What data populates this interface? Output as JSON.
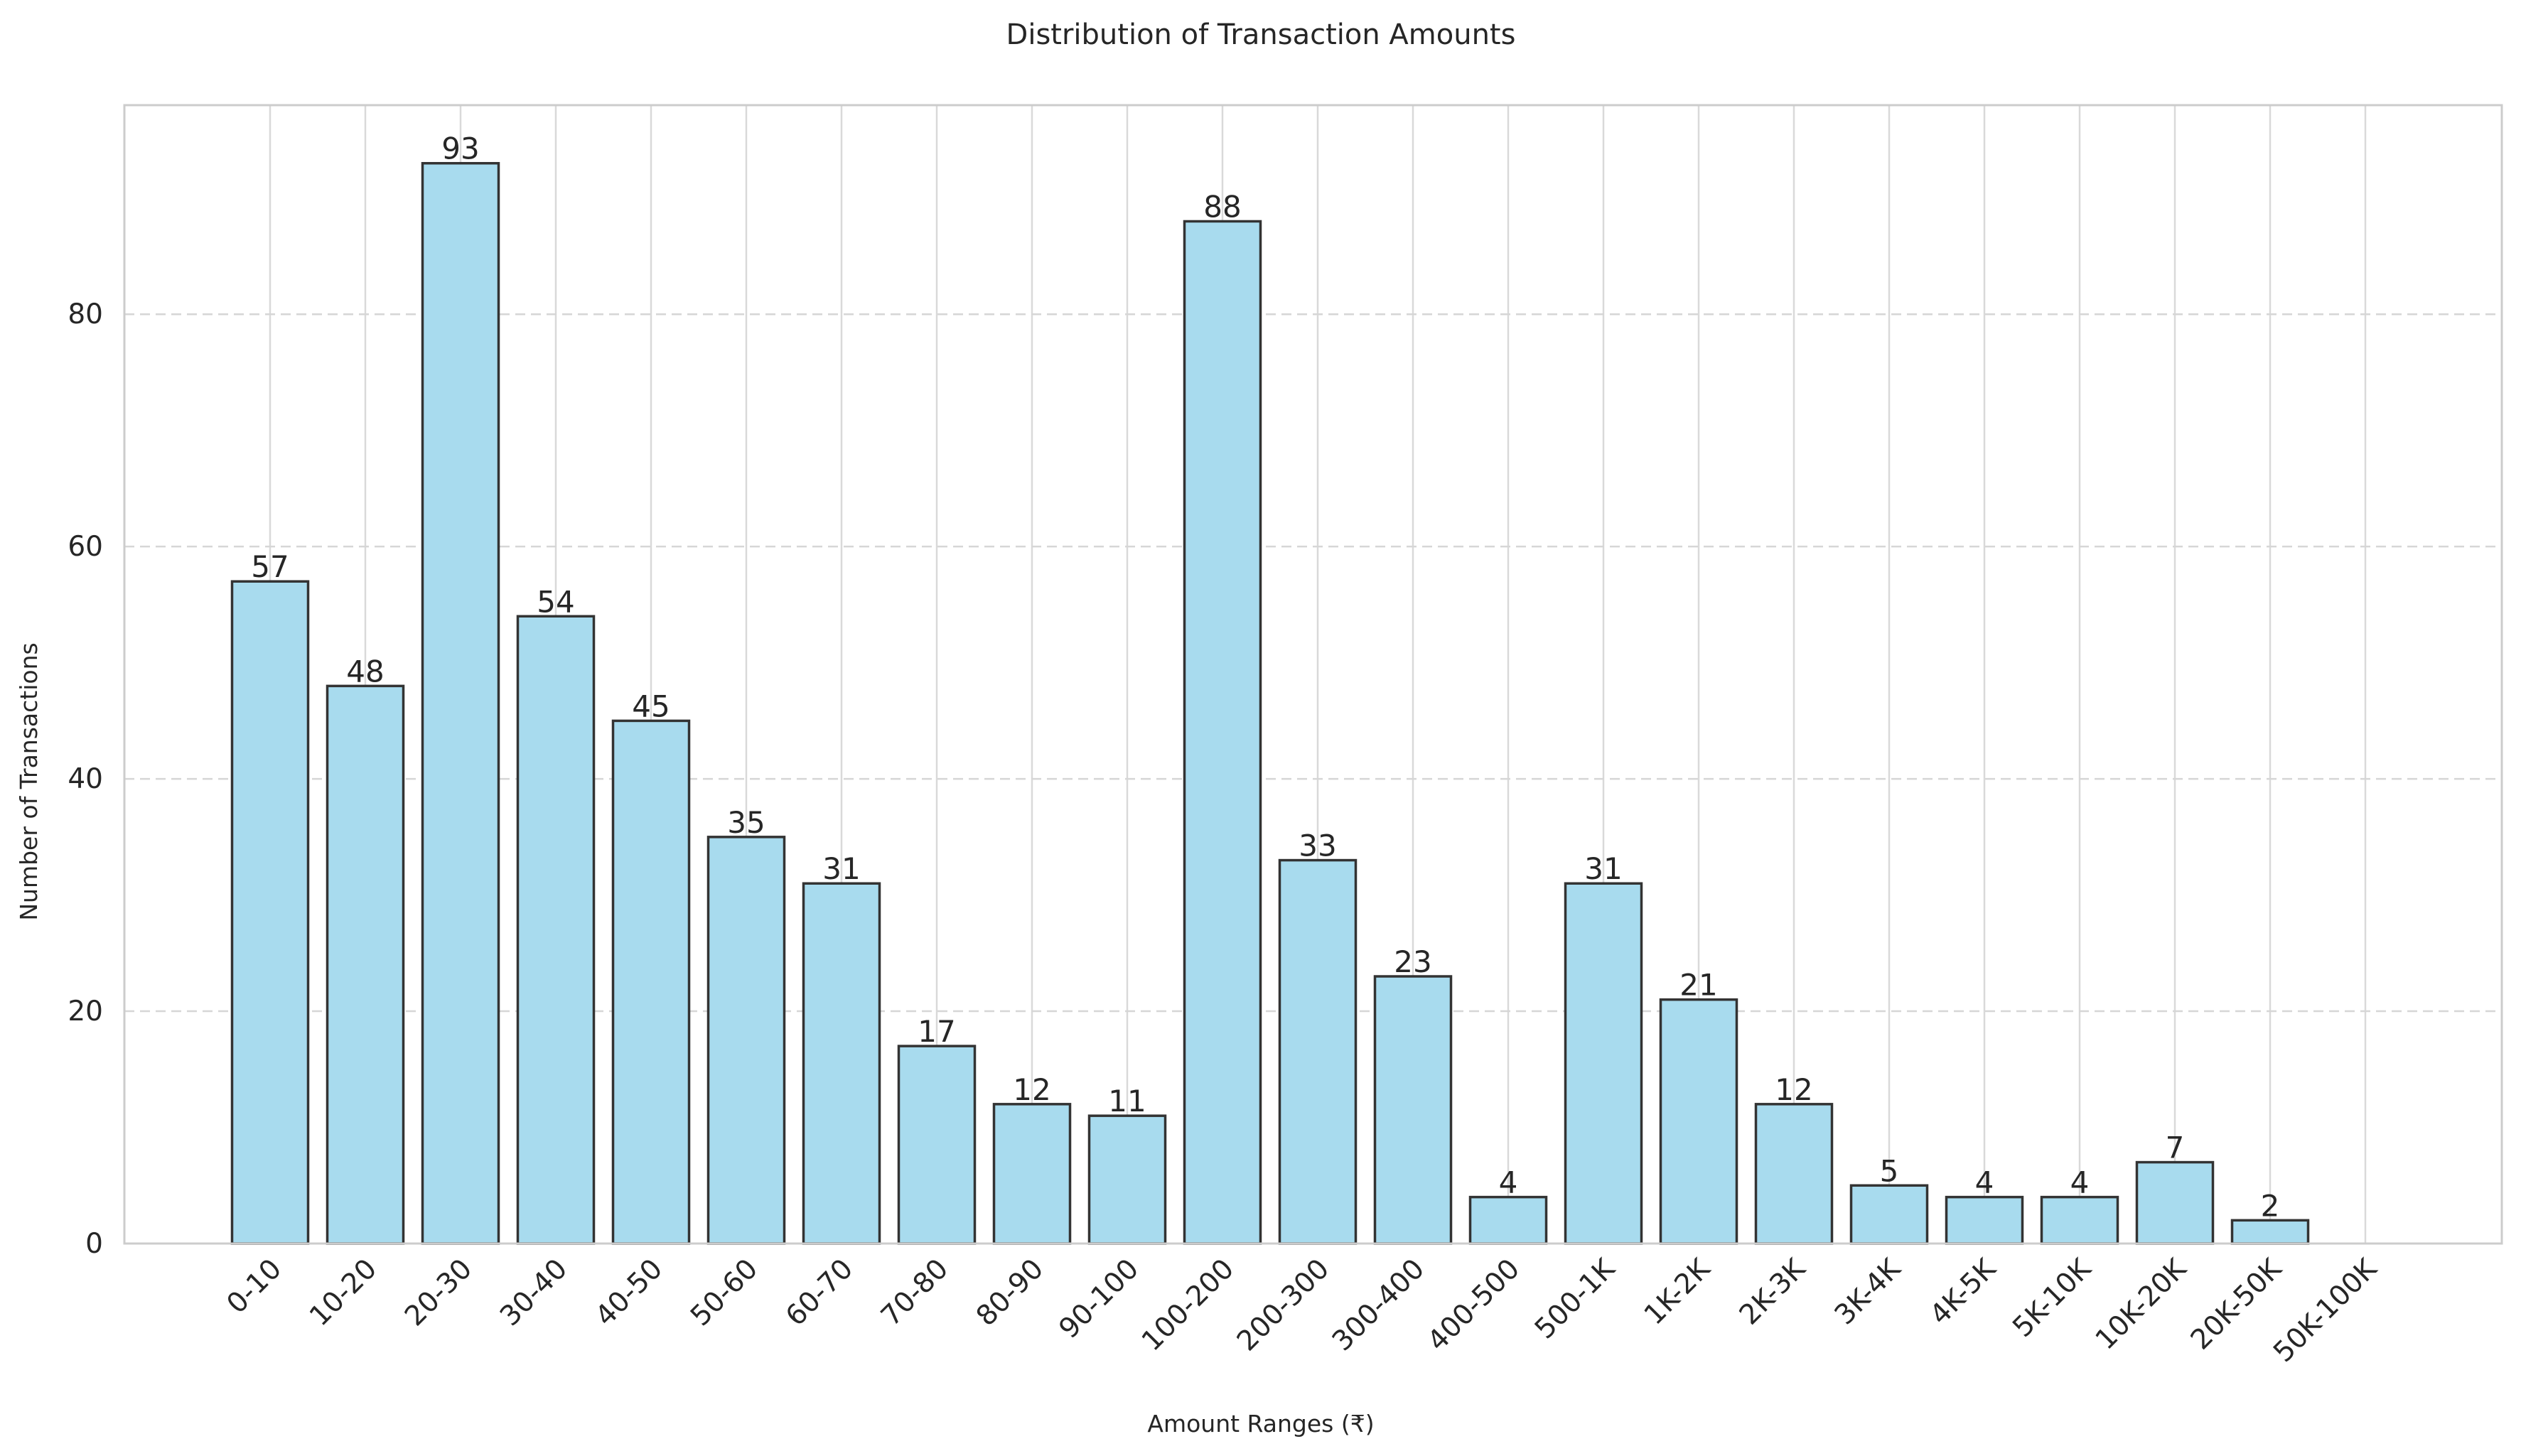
{
  "chart_data": {
    "type": "bar",
    "title": "Distribution of Transaction Amounts",
    "xlabel": "Amount Ranges (₹)",
    "ylabel": "Number of Transactions",
    "categories": [
      "0-10",
      "10-20",
      "20-30",
      "30-40",
      "40-50",
      "50-60",
      "60-70",
      "70-80",
      "80-90",
      "90-100",
      "100-200",
      "200-300",
      "300-400",
      "400-500",
      "500-1K",
      "1K-2K",
      "2K-3K",
      "3K-4K",
      "4K-5K",
      "5K-10K",
      "10K-20K",
      "20K-50K",
      "50K-100K"
    ],
    "values": [
      57,
      48,
      93,
      54,
      45,
      35,
      31,
      17,
      12,
      11,
      88,
      33,
      23,
      4,
      31,
      21,
      12,
      5,
      4,
      4,
      7,
      2,
      0
    ],
    "data_labels": [
      "57",
      "48",
      "93",
      "54",
      "45",
      "35",
      "31",
      "17",
      "12",
      "11",
      "88",
      "33",
      "23",
      "4",
      "31",
      "21",
      "12",
      "5",
      "4",
      "4",
      "7",
      "2",
      ""
    ],
    "ylim": [
      0,
      98
    ],
    "yticks": [
      0,
      20,
      40,
      60,
      80
    ],
    "bar_color": "#a8dbee",
    "edge_color": "#333333",
    "grid": {
      "y": true,
      "x": true,
      "y_style": "dashed"
    },
    "legend": "none"
  }
}
